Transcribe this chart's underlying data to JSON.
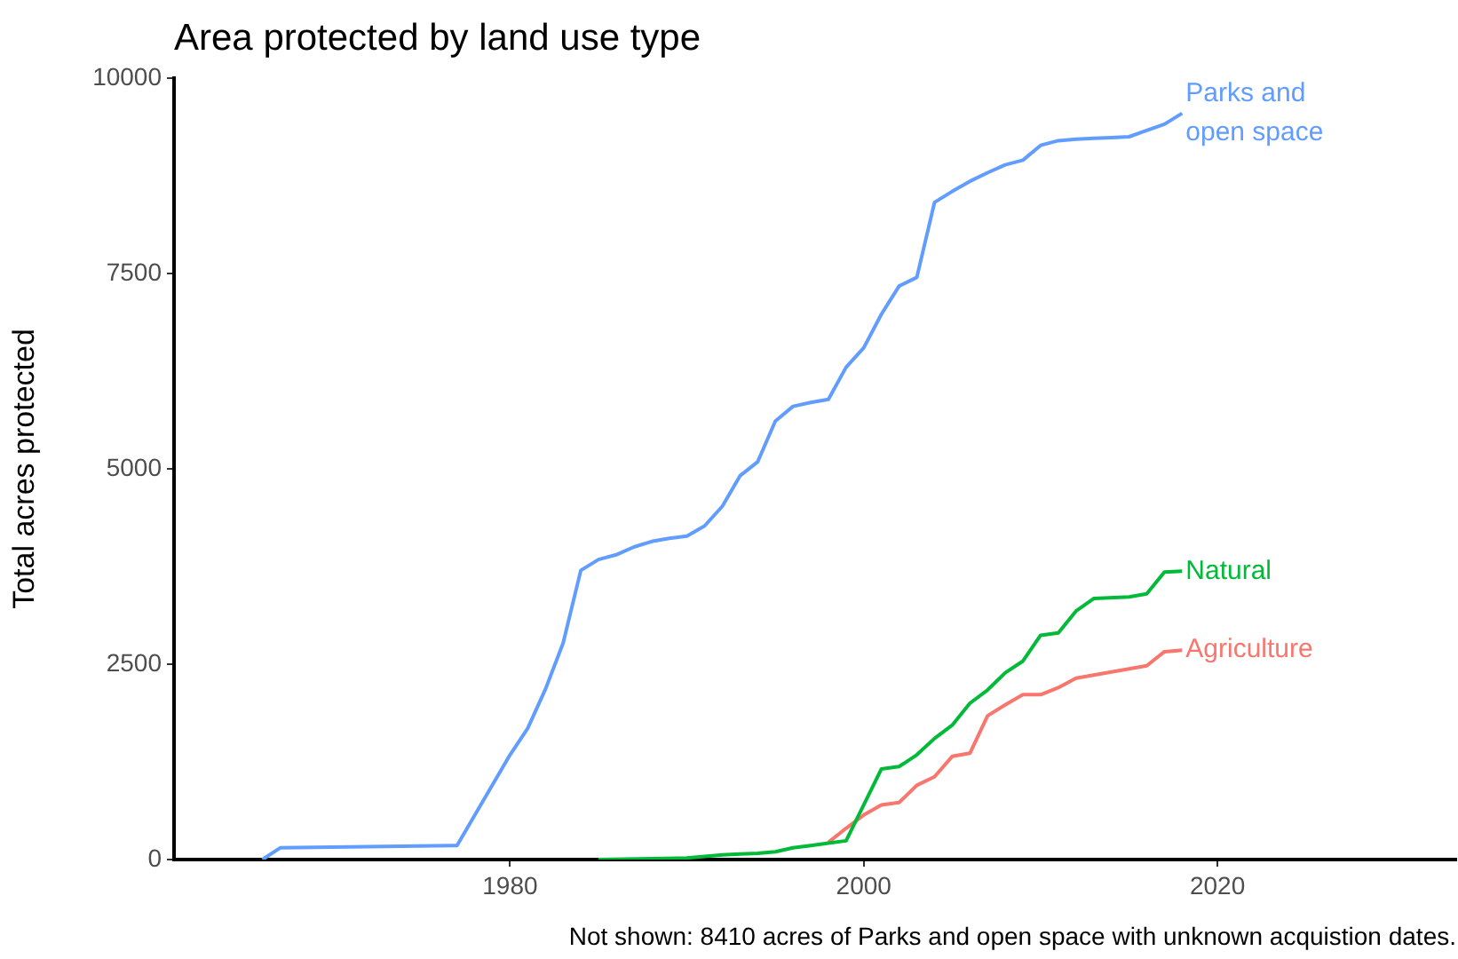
{
  "chart_data": {
    "type": "line",
    "title": "Area protected by land use type",
    "ylabel": "Total acres protected",
    "xlim": [
      1961,
      2033.5
    ],
    "xticks": [
      1980,
      2000,
      2020
    ],
    "ylim": [
      0,
      10000
    ],
    "yticks": [
      0,
      2500,
      5000,
      7500,
      10000
    ],
    "grid": false,
    "legend": false,
    "marker": "none",
    "line_style": "solid",
    "annotations": [
      "Not shown: 8410 acres of Parks and open space with unknown acquistion dates."
    ],
    "series": [
      {
        "name": "Parks and open space",
        "color": "#619cff",
        "x": [
          1966,
          1967,
          1977,
          1980,
          1981,
          1982,
          1983,
          1984,
          1985,
          1986,
          1987,
          1988,
          1989,
          1990,
          1991,
          1992,
          1993,
          1994,
          1995,
          1996,
          1997,
          1998,
          1999,
          2000,
          2001,
          2002,
          2003,
          2004,
          2005,
          2006,
          2007,
          2008,
          2009,
          2010,
          2011,
          2012,
          2013,
          2014,
          2015,
          2016,
          2017,
          2018
        ],
        "values": [
          0,
          150,
          180,
          1340,
          1680,
          2180,
          2770,
          3700,
          3840,
          3900,
          4000,
          4070,
          4110,
          4140,
          4270,
          4520,
          4910,
          5090,
          5610,
          5800,
          5850,
          5890,
          6300,
          6550,
          6980,
          7340,
          7450,
          8410,
          8550,
          8680,
          8790,
          8890,
          8950,
          9140,
          9200,
          9220,
          9230,
          9240,
          9250,
          9330,
          9410,
          9550
        ]
      },
      {
        "name": "Natural",
        "color": "#00ba38",
        "x": [
          1985,
          1990,
          1991,
          1992,
          1993,
          1994,
          1995,
          1996,
          1997,
          1998,
          1999,
          2001,
          2002,
          2003,
          2004,
          2005,
          2006,
          2007,
          2008,
          2009,
          2010,
          2011,
          2012,
          2013,
          2015,
          2016,
          2017,
          2018
        ],
        "values": [
          0,
          20,
          40,
          60,
          70,
          80,
          100,
          150,
          180,
          210,
          240,
          1160,
          1190,
          1340,
          1550,
          1720,
          2000,
          2170,
          2390,
          2540,
          2870,
          2900,
          3180,
          3340,
          3360,
          3400,
          3680,
          3690
        ]
      },
      {
        "name": "Agriculture",
        "color": "#f8766d",
        "x": [
          1998,
          1999,
          2000,
          2001,
          2002,
          2003,
          2004,
          2005,
          2006,
          2007,
          2008,
          2009,
          2010,
          2011,
          2012,
          2013,
          2014,
          2015,
          2016,
          2017,
          2018
        ],
        "values": [
          220,
          400,
          570,
          700,
          730,
          950,
          1060,
          1320,
          1360,
          1840,
          1980,
          2110,
          2110,
          2200,
          2320,
          2360,
          2400,
          2440,
          2480,
          2660,
          2680
        ]
      }
    ]
  }
}
